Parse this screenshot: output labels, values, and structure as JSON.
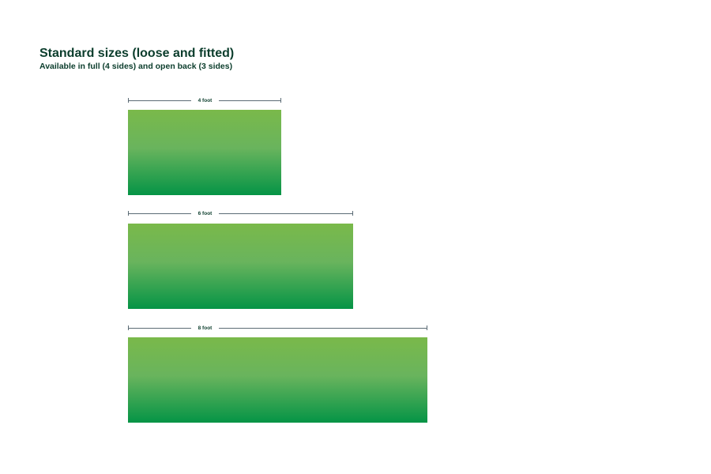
{
  "header": {
    "title": "Standard sizes (loose and fitted)",
    "subtitle": "Available in full (4 sides) and open back (3 sides)"
  },
  "sizes": [
    {
      "label": "4 foot",
      "length_ft": 4
    },
    {
      "label": "6 foot",
      "length_ft": 6
    },
    {
      "label": "8 foot",
      "length_ft": 8
    }
  ],
  "colors": {
    "text": "#0b3d2c",
    "dimension_line": "#5b6b75",
    "fill_top": "#7ab94a",
    "fill_bottom": "#059446"
  }
}
